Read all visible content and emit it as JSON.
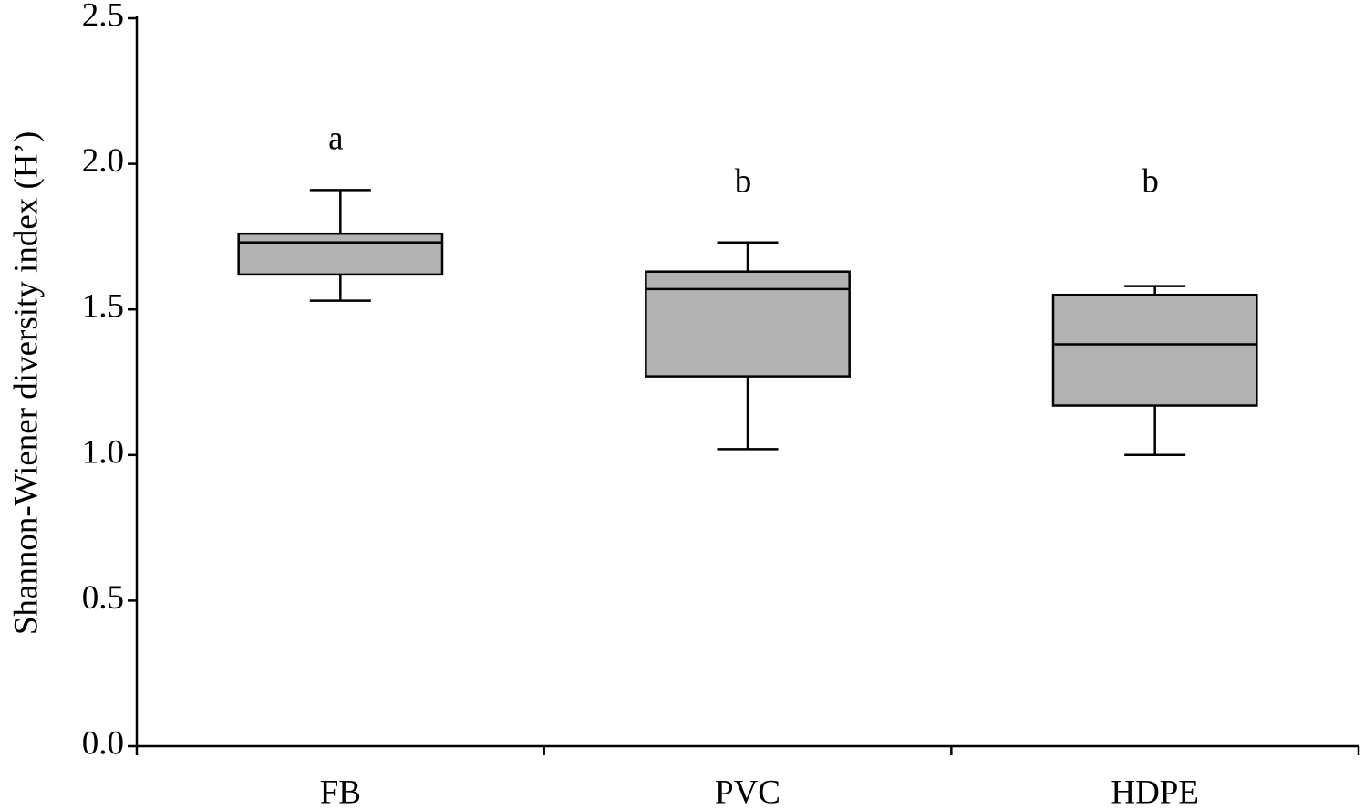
{
  "chart_data": {
    "type": "box",
    "y_label": "Shannon-Wiener diversity index (H’)",
    "categories": [
      "FB",
      "PVC",
      "HDPE"
    ],
    "boxes": [
      {
        "low": 1.53,
        "q1": 1.62,
        "median": 1.73,
        "q3": 1.76,
        "high": 1.91
      },
      {
        "low": 1.02,
        "q1": 1.27,
        "median": 1.57,
        "q3": 1.63,
        "high": 1.73
      },
      {
        "low": 1.0,
        "q1": 1.17,
        "median": 1.38,
        "q3": 1.55,
        "high": 1.58
      }
    ],
    "annotations": [
      "a",
      "b",
      "b"
    ],
    "color": "#b2b2b2",
    "ylim": [
      0,
      2.5
    ],
    "yticks": [
      {
        "value": 0,
        "label": "0.0"
      },
      0.5,
      {
        "value": 1,
        "label": "1.0"
      },
      1.5,
      {
        "value": 2,
        "label": "2.0"
      },
      2.5
    ]
  }
}
